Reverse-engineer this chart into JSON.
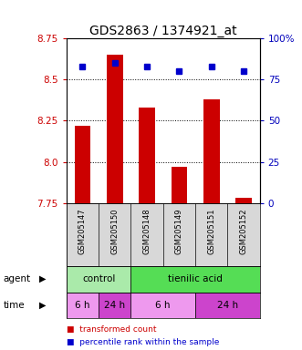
{
  "title": "GDS2863 / 1374921_at",
  "samples": [
    "GSM205147",
    "GSM205150",
    "GSM205148",
    "GSM205149",
    "GSM205151",
    "GSM205152"
  ],
  "bar_values": [
    8.22,
    8.65,
    8.33,
    7.97,
    8.38,
    7.78
  ],
  "percentile_values": [
    83,
    85,
    83,
    80,
    83,
    80
  ],
  "ylim_left": [
    7.75,
    8.75
  ],
  "ylim_right": [
    0,
    100
  ],
  "yticks_left": [
    7.75,
    8.0,
    8.25,
    8.5,
    8.75
  ],
  "yticks_right": [
    0,
    25,
    50,
    75,
    100
  ],
  "ytick_labels_right": [
    "0",
    "25",
    "50",
    "75",
    "100%"
  ],
  "bar_color": "#cc0000",
  "dot_color": "#0000cc",
  "agent_row": [
    {
      "label": "control",
      "span": [
        0,
        2
      ],
      "color": "#aaeaaa"
    },
    {
      "label": "tienilic acid",
      "span": [
        2,
        6
      ],
      "color": "#55dd55"
    }
  ],
  "time_row": [
    {
      "label": "6 h",
      "span": [
        0,
        1
      ],
      "color": "#ee99ee"
    },
    {
      "label": "24 h",
      "span": [
        1,
        2
      ],
      "color": "#cc44cc"
    },
    {
      "label": "6 h",
      "span": [
        2,
        4
      ],
      "color": "#ee99ee"
    },
    {
      "label": "24 h",
      "span": [
        4,
        6
      ],
      "color": "#cc44cc"
    }
  ],
  "legend_bar_label": "transformed count",
  "legend_dot_label": "percentile rank within the sample",
  "title_fontsize": 10,
  "tick_fontsize": 7.5,
  "label_fontsize": 7.5,
  "sample_fontsize": 6.0,
  "legend_fontsize": 6.5,
  "bar_width": 0.5
}
